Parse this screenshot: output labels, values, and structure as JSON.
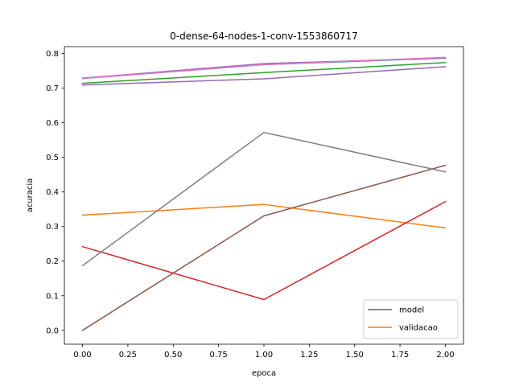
{
  "chart_data": {
    "type": "line",
    "title": "0-dense-64-nodes-1-conv-1553860717",
    "xlabel": "epoca",
    "ylabel": "acuracia",
    "x": [
      0,
      1,
      2
    ],
    "xlim": [
      -0.1,
      2.1
    ],
    "ylim": [
      -0.04,
      0.82
    ],
    "xticks": [
      0.0,
      0.25,
      0.5,
      0.75,
      1.0,
      1.25,
      1.5,
      1.75,
      2.0
    ],
    "xtick_labels": [
      "0.00",
      "0.25",
      "0.50",
      "0.75",
      "1.00",
      "1.25",
      "1.50",
      "1.75",
      "2.00"
    ],
    "yticks": [
      0.0,
      0.1,
      0.2,
      0.3,
      0.4,
      0.5,
      0.6,
      0.7,
      0.8
    ],
    "ytick_labels": [
      "0.0",
      "0.1",
      "0.2",
      "0.3",
      "0.4",
      "0.5",
      "0.6",
      "0.7",
      "0.8"
    ],
    "grid": false,
    "legend_position": "lower-right",
    "series": [
      {
        "name": "model",
        "color": "#1f77b4",
        "values": [
          0.728,
          0.768,
          0.787
        ]
      },
      {
        "name": "validacao",
        "color": "#ff7f0e",
        "values": [
          0.333,
          0.364,
          0.296
        ]
      },
      {
        "color": "#2ca02c",
        "values": [
          0.714,
          0.745,
          0.774
        ]
      },
      {
        "color": "#d62728",
        "values": [
          0.242,
          0.089,
          0.372
        ]
      },
      {
        "color": "#9467bd",
        "values": [
          0.729,
          0.771,
          0.787
        ]
      },
      {
        "color": "#8c564b",
        "values": [
          0.0,
          0.331,
          0.477
        ]
      },
      {
        "color": "#e377c2",
        "values": [
          0.728,
          0.768,
          0.789
        ]
      },
      {
        "color": "#7f7f7f",
        "values": [
          0.187,
          0.572,
          0.458
        ]
      },
      {
        "color": "#9467bd",
        "values": [
          0.709,
          0.727,
          0.762
        ]
      }
    ],
    "legend": [
      {
        "label": "model",
        "color": "#1f77b4"
      },
      {
        "label": "validacao",
        "color": "#ff7f0e"
      }
    ]
  }
}
